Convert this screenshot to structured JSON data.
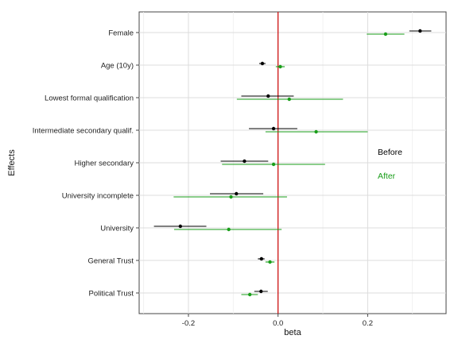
{
  "chart_data": {
    "type": "scatter",
    "subtype": "coefficient-plot with error bars",
    "title": "",
    "xlabel": "beta",
    "ylabel": "Effects",
    "xlim": [
      -0.31,
      0.375
    ],
    "xticks": [
      -0.2,
      0.0,
      0.2
    ],
    "xtick_labels": [
      "-0.2",
      "0.0",
      "0.2"
    ],
    "categories": [
      "Female",
      "Age (10y)",
      "Lowest formal qualification",
      "Intermediate secondary qualif.",
      "Higher secondary",
      "University incomplete",
      "University",
      "General Trust",
      "Political Trust"
    ],
    "reference_line": {
      "x": 0.0,
      "color": "#cc0000"
    },
    "grid": true,
    "legend_position": "right",
    "series": [
      {
        "name": "Before",
        "color": "#000000",
        "estimate": [
          0.317,
          -0.035,
          -0.022,
          -0.01,
          -0.075,
          -0.093,
          -0.218,
          -0.037,
          -0.038
        ],
        "lower": [
          0.293,
          -0.042,
          -0.082,
          -0.065,
          -0.128,
          -0.152,
          -0.277,
          -0.045,
          -0.053
        ],
        "upper": [
          0.342,
          -0.028,
          0.035,
          0.043,
          -0.022,
          -0.033,
          -0.16,
          -0.03,
          -0.023
        ]
      },
      {
        "name": "After",
        "color": "#1a9e1a",
        "estimate": [
          0.24,
          0.005,
          0.025,
          0.085,
          -0.01,
          -0.105,
          -0.11,
          -0.018,
          -0.063
        ],
        "lower": [
          0.198,
          -0.005,
          -0.092,
          -0.028,
          -0.125,
          -0.233,
          -0.232,
          -0.028,
          -0.082
        ],
        "upper": [
          0.282,
          0.015,
          0.145,
          0.2,
          0.105,
          0.02,
          0.008,
          -0.008,
          -0.045
        ]
      }
    ]
  }
}
